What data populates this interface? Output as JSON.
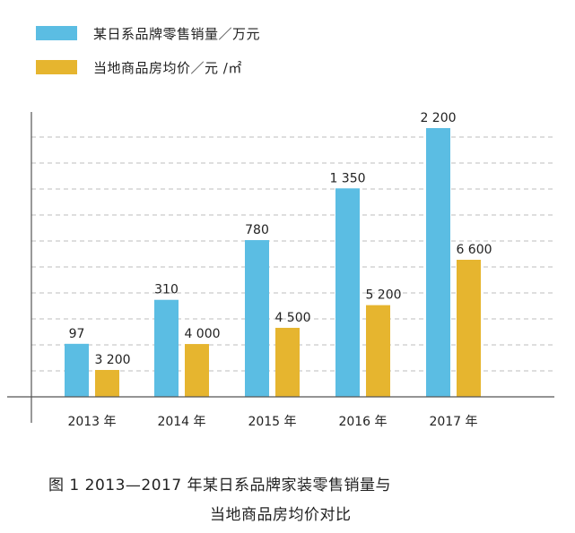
{
  "colors": {
    "blue": "#5bbde3",
    "gold": "#e6b52f",
    "grid": "#bdbdbd",
    "axis": "#555555"
  },
  "chart_data": {
    "type": "bar",
    "categories": [
      "2013 年",
      "2014 年",
      "2015 年",
      "2016 年",
      "2017 年"
    ],
    "series": [
      {
        "name": "某日系品牌零售销量／万元",
        "values": [
          97,
          310,
          780,
          1350,
          2200
        ],
        "labels": [
          "97",
          "310",
          "780",
          "1 350",
          "2 200"
        ],
        "color": "#5bbde3"
      },
      {
        "name": "当地商品房均价／元 /㎡",
        "values": [
          3200,
          4000,
          4500,
          5200,
          6600
        ],
        "labels": [
          "3 200",
          "4 000",
          "4 500",
          "5 200",
          "6 600"
        ],
        "color": "#e6b52f"
      }
    ],
    "grid": true,
    "legend_position": "top-left",
    "caption": [
      "图 1 2013—2017 年某日系品牌家装零售销量与",
      "当地商品房均价对比"
    ]
  }
}
